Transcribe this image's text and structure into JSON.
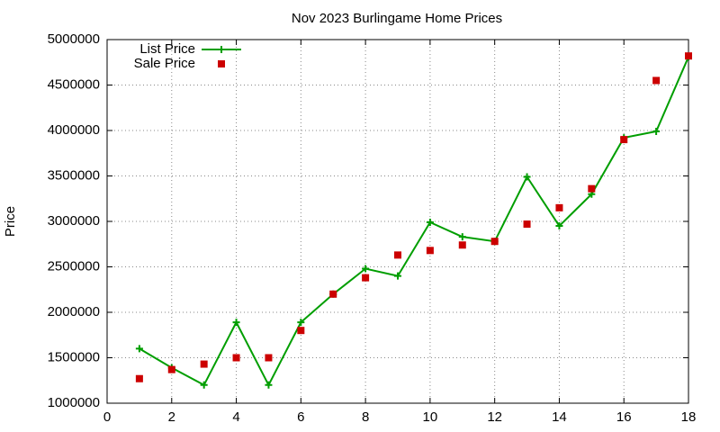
{
  "chart_data": {
    "type": "line",
    "title": "Nov 2023 Burlingame Home Prices",
    "y_label": "Price",
    "x": [
      1,
      2,
      3,
      4,
      5,
      6,
      7,
      8,
      9,
      10,
      11,
      12,
      13,
      14,
      15,
      16,
      17,
      18
    ],
    "series": [
      {
        "name": "List Price",
        "color": "#009e00",
        "line": true,
        "marker": "plus",
        "values": [
          1600000,
          1390000,
          1200000,
          1890000,
          1200000,
          1890000,
          2200000,
          2480000,
          2400000,
          2990000,
          2830000,
          2780000,
          3490000,
          2950000,
          3300000,
          3920000,
          3990000,
          4810000
        ]
      },
      {
        "name": "Sale Price",
        "color": "#cc0000",
        "line": false,
        "marker": "square",
        "values": [
          1270000,
          1370000,
          1430000,
          1500000,
          1500000,
          1800000,
          2200000,
          2380000,
          2630000,
          2680000,
          2740000,
          2780000,
          2970000,
          3150000,
          3360000,
          3900000,
          4550000,
          4820000
        ]
      }
    ],
    "xlim": [
      0,
      18
    ],
    "xticks": [
      0,
      2,
      4,
      6,
      8,
      10,
      12,
      14,
      16,
      18
    ],
    "ylim": [
      1000000,
      5000000
    ],
    "yticks": [
      1000000,
      1500000,
      2000000,
      2500000,
      3000000,
      3500000,
      4000000,
      4500000,
      5000000
    ],
    "grid": true,
    "legend": "top-left"
  }
}
